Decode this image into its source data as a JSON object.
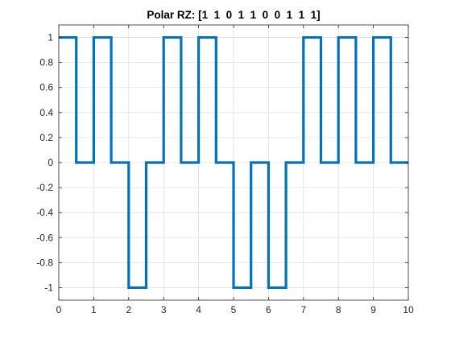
{
  "chart_data": {
    "type": "line",
    "title": "Polar RZ: [1  1  0  1  1  0  0  1  1  1]",
    "xlabel": "",
    "ylabel": "",
    "xlim": [
      0,
      10
    ],
    "ylim": [
      -1.1,
      1.1
    ],
    "x_ticks": [
      0,
      1,
      2,
      3,
      4,
      5,
      6,
      7,
      8,
      9,
      10
    ],
    "y_ticks": [
      -1,
      -0.8,
      -0.6,
      -0.4,
      -0.2,
      0,
      0.2,
      0.4,
      0.6,
      0.8,
      1
    ],
    "x_tick_labels": [
      "0",
      "1",
      "2",
      "3",
      "4",
      "5",
      "6",
      "7",
      "8",
      "9",
      "10"
    ],
    "y_tick_labels": [
      "-1",
      "-0.8",
      "-0.6",
      "-0.4",
      "-0.2",
      "0",
      "0.2",
      "0.4",
      "0.6",
      "0.8",
      "1"
    ],
    "grid": true,
    "bits": [
      1,
      1,
      0,
      1,
      1,
      0,
      0,
      1,
      1,
      1
    ],
    "series": [
      {
        "color": "#0072BD",
        "x": [
          0,
          0.5,
          0.5,
          1,
          1,
          1.5,
          1.5,
          2,
          2,
          2.5,
          2.5,
          3,
          3,
          3.5,
          3.5,
          4,
          4,
          4.5,
          4.5,
          5,
          5,
          5.5,
          5.5,
          6,
          6,
          6.5,
          6.5,
          7,
          7,
          7.5,
          7.5,
          8,
          8,
          8.5,
          8.5,
          9,
          9,
          9.5,
          9.5,
          10
        ],
        "y": [
          1,
          1,
          0,
          0,
          1,
          1,
          0,
          0,
          -1,
          -1,
          0,
          0,
          1,
          1,
          0,
          0,
          1,
          1,
          0,
          0,
          -1,
          -1,
          0,
          0,
          -1,
          -1,
          0,
          0,
          1,
          1,
          0,
          0,
          1,
          1,
          0,
          0,
          1,
          1,
          0,
          0
        ]
      }
    ]
  }
}
